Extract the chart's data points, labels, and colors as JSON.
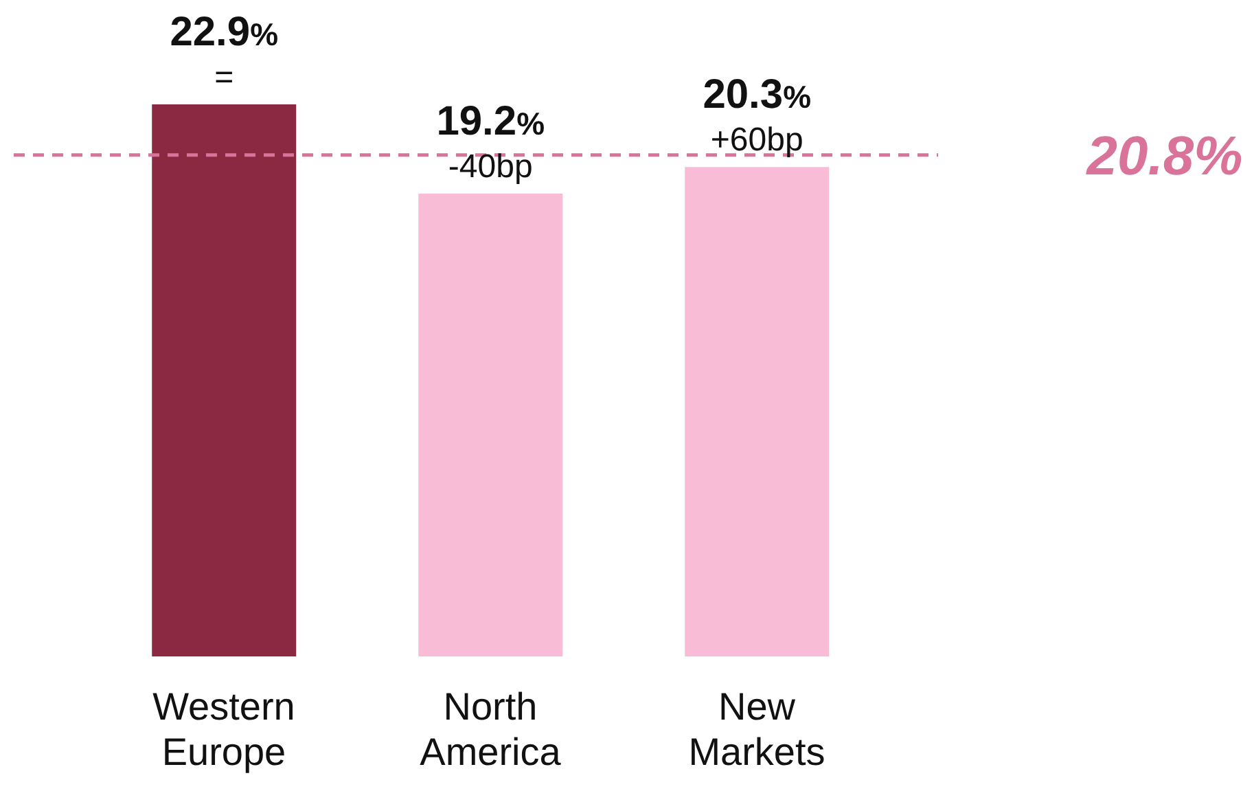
{
  "chart_data": {
    "type": "bar",
    "categories": [
      "Western Europe",
      "North America",
      "New Markets"
    ],
    "values": [
      22.9,
      19.2,
      20.3
    ],
    "colors": [
      "#8b2942",
      "#f9bcd6",
      "#f9bcd6"
    ],
    "value_labels": [
      "22.9%",
      "19.2%",
      "20.3%"
    ],
    "annotations": [
      {
        "text": "=",
        "x": "Western Europe",
        "y": 22.9
      },
      {
        "text": "-40bp",
        "x": "North America",
        "y": 19.2
      },
      {
        "text": "+60bp",
        "x": "New Markets",
        "y": 20.3
      }
    ],
    "ref_lines": [
      {
        "axis": "y",
        "value": 20.8,
        "label": "20.8%",
        "color": "#d9739a",
        "line_style": "dashed"
      }
    ]
  }
}
